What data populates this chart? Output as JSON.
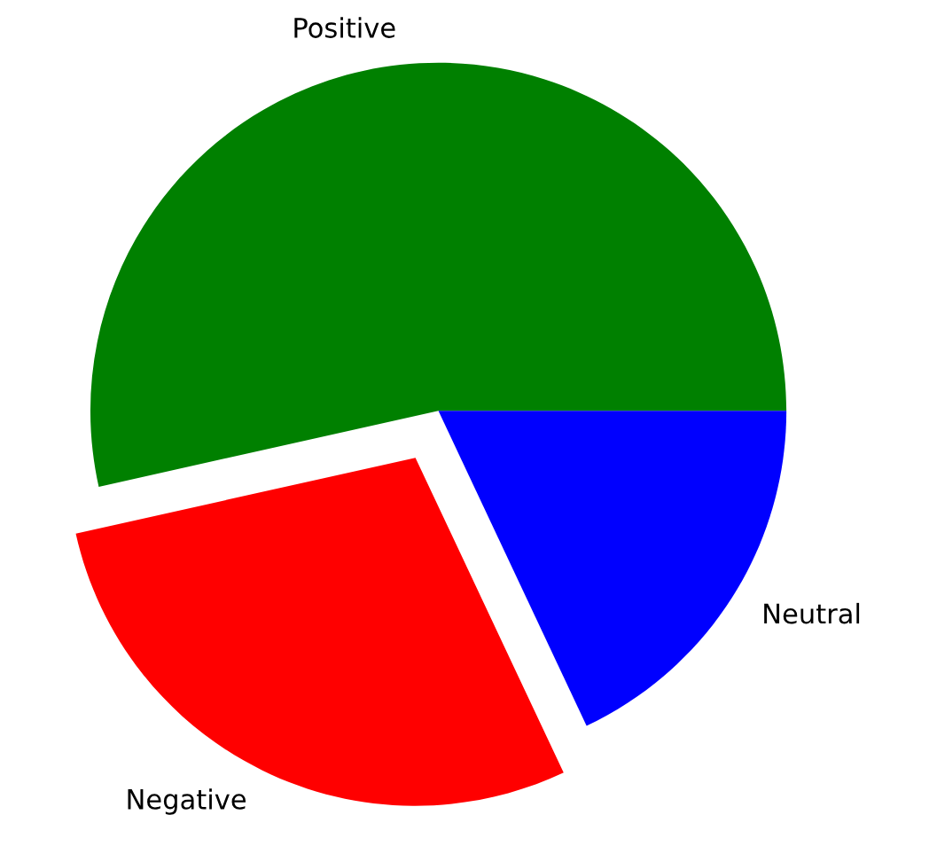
{
  "chart_data": {
    "type": "pie",
    "categories": [
      "Positive",
      "Negative",
      "Neutral"
    ],
    "values": [
      53.5,
      28.5,
      18
    ],
    "colors": [
      "#008000",
      "#ff0000",
      "#0000ff"
    ]
  }
}
